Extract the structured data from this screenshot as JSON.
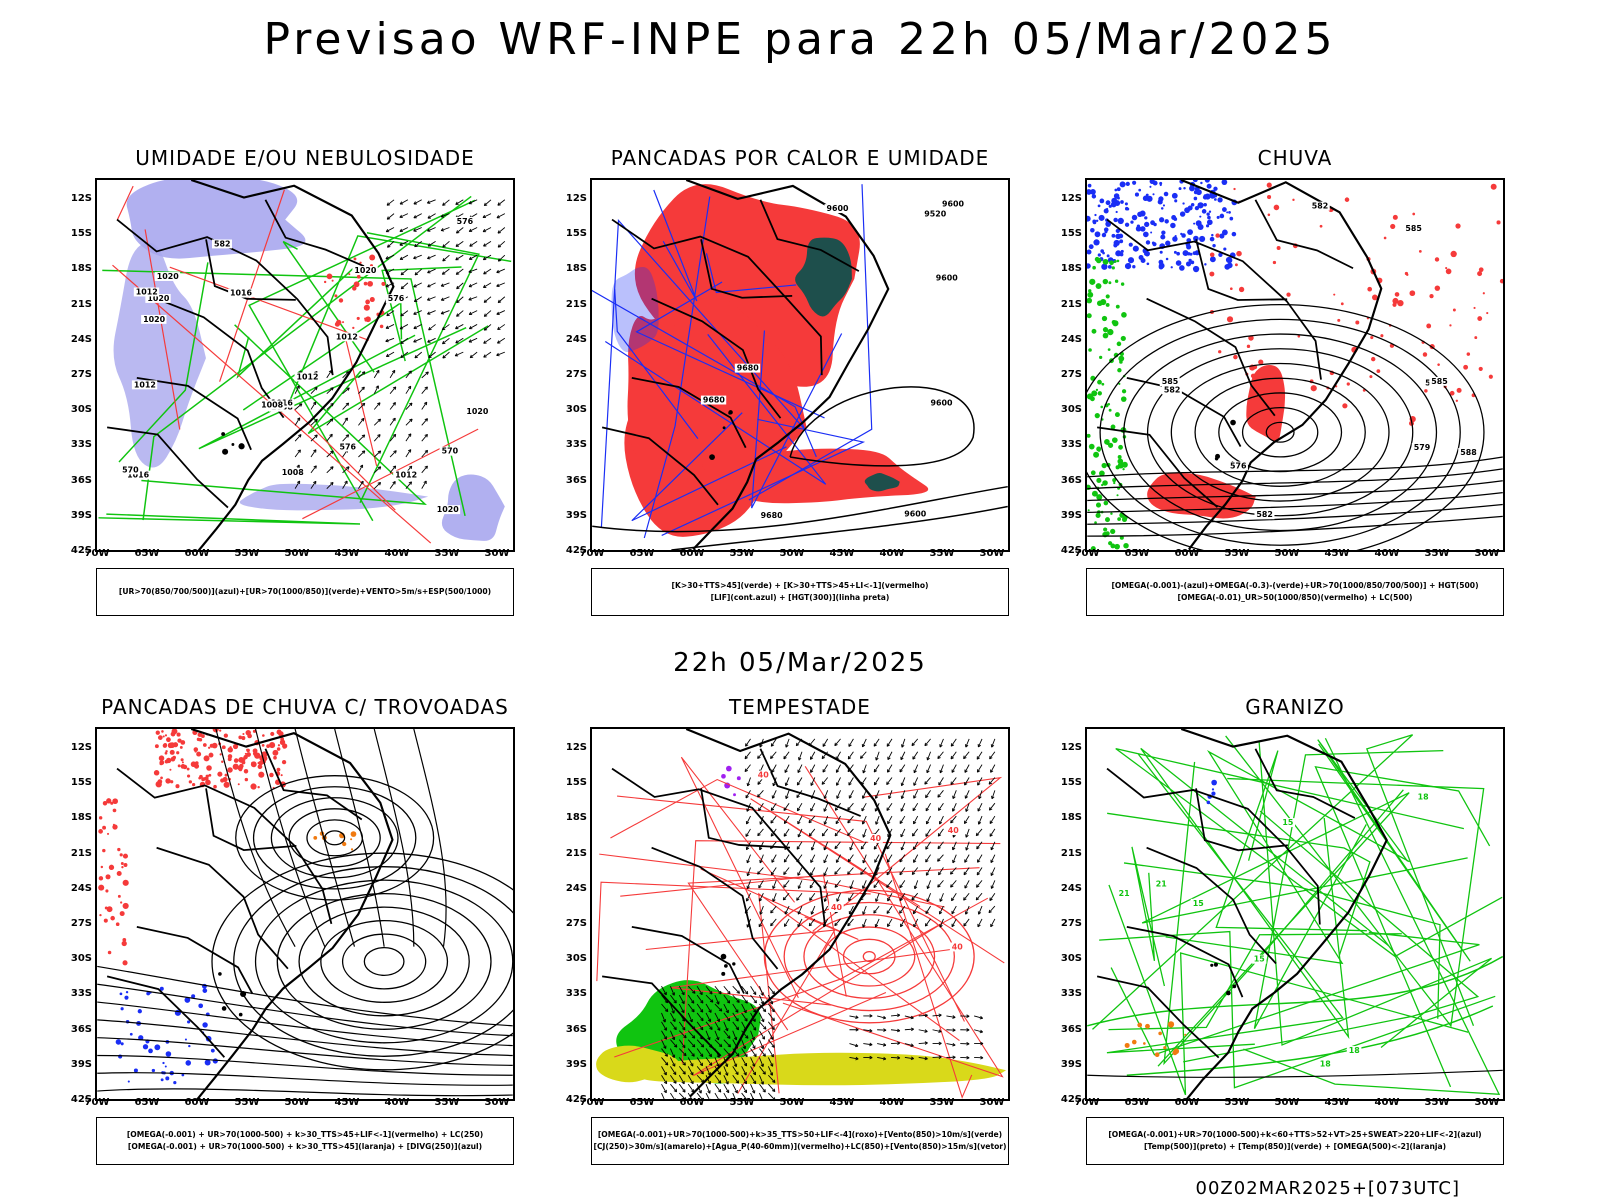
{
  "main_title": "Previsao WRF-INPE  para 22h 05/Mar/2025",
  "mid_date": "22h 05/Mar/2025",
  "footer": "00Z02MAR2025+[073UTC]",
  "lat_ticks": [
    "12S",
    "15S",
    "18S",
    "21S",
    "24S",
    "27S",
    "30S",
    "33S",
    "36S",
    "39S",
    "42S"
  ],
  "lon_ticks": [
    "70W",
    "65W",
    "60W",
    "55W",
    "50W",
    "45W",
    "40W",
    "35W",
    "30W"
  ],
  "panels": [
    {
      "title": "UMIDADE E/OU NEBULOSIDADE",
      "legend": [
        "[UR>70(850/700/500)](azul)+[UR>70(1000/850)](verde)+VENTO>5m/s+ESP(500/1000)"
      ],
      "contour_labels": [
        "1012",
        "1012",
        "1020",
        "1012",
        "1016",
        "1020",
        "1008",
        "1012",
        "1016",
        "1020",
        "1008",
        "1020",
        "1008",
        "1012",
        "1016",
        "1020",
        "1020",
        "582",
        "576",
        "576",
        "570",
        "570",
        "576"
      ]
    },
    {
      "title": "PANCADAS POR CALOR E UMIDADE",
      "legend": [
        "[K>30+TTS>45](verde) + [K>30+TTS>45+LI<-1](vermelho)",
        "[LIF](cont.azul) + [HGT(300)](linha preta)"
      ],
      "contour_labels": [
        "9600",
        "9600",
        "9600",
        "9600",
        "9680",
        "9680",
        "9680",
        "9600",
        "9520"
      ]
    },
    {
      "title": "CHUVA",
      "legend": [
        "[OMEGA(-0.001)-(azul)+OMEGA(-0.3)-(verde)+UR>70(1000/850/700/500)] + HGT(500)",
        "[OMEGA(-0.01)_UR>50(1000/850)(vermelho) + LC(500)"
      ],
      "contour_labels": [
        "585",
        "582",
        "582",
        "585",
        "585",
        "588",
        "582",
        "579",
        "576",
        "582"
      ]
    },
    {
      "title": "PANCADAS DE CHUVA C/ TROVOADAS",
      "legend": [
        "[OMEGA(-0.001) + UR>70(1000-500) + k>30_TTS>45+LIF<-1](vermelho) + LC(250)",
        "[OMEGA(-0.001) + UR>70(1000-500) + k>30_TTS>45](laranja) + [DIVG(250)](azul)"
      ],
      "contour_labels": []
    },
    {
      "title": "TEMPESTADE",
      "legend": [
        "[OMEGA(-0.001)+UR>70(1000-500)+k>35_TTS>50+LIF<-4](roxo)+[Vento(850)>10m/s](verde)",
        "[CJ(250)>30m/s](amarelo)+[Agua_P(40-60mm)](vermelho)+LC(850)+[Vento(850)>15m/s](vetor)"
      ],
      "contour_labels": [
        "40",
        "40",
        "40",
        "40",
        "40"
      ]
    },
    {
      "title": "GRANIZO",
      "legend": [
        "[OMEGA(-0.001)+UR>70(1000-500)+k<60+TTS>52+VT>25+SWEAT>220+LIF<-2](azul)",
        "[Temp(500)](preto) + [Temp(850)](verde) + [OMEGA(500)<-2](laranja)"
      ],
      "contour_labels": [
        "18",
        "21",
        "15",
        "15",
        "18",
        "21",
        "15",
        "18"
      ]
    }
  ],
  "colors": {
    "red": "#f53a3a",
    "blue": "#1a2ef5",
    "green": "#10c410",
    "lavender": "#a9a7ee",
    "darkteal": "#1e4f4c",
    "yellow": "#d9d91a",
    "orange": "#f07a10"
  }
}
